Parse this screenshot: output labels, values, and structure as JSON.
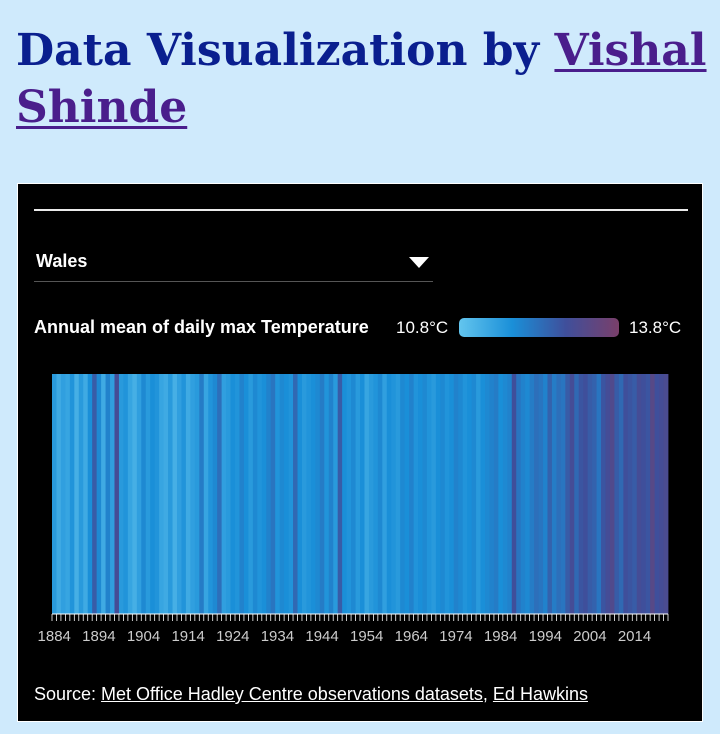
{
  "page": {
    "title_prefix": "Data Visualization by ",
    "author": "Vishal Shinde"
  },
  "dropdown": {
    "selected": "Wales"
  },
  "legend": {
    "label": "Annual mean of daily max Temperature",
    "min_label": "10.8°C",
    "max_label": "13.8°C",
    "colors": [
      "#63c5ee",
      "#1a8fd8",
      "#3f4f9b",
      "#7a3f6a"
    ]
  },
  "source": {
    "prefix": "Source: ",
    "link1": "Met Office Hadley Centre observations datasets",
    "separator": ", ",
    "link2": "Ed Hawkins"
  },
  "chart_data": {
    "type": "heatmap",
    "title": "Annual mean of daily max Temperature",
    "region": "Wales",
    "unit": "°C",
    "x_start": 1884,
    "x_end": 2021,
    "ticks": [
      "1884",
      "1894",
      "1904",
      "1914",
      "1924",
      "1934",
      "1944",
      "1954",
      "1964",
      "1974",
      "1984",
      "1994",
      "2004",
      "2014"
    ],
    "vmin": 10.8,
    "vmax": 13.8,
    "values": [
      11.6,
      11.3,
      11.5,
      11.4,
      11.7,
      11.2,
      11.6,
      11.3,
      11.8,
      12.6,
      11.9,
      11.3,
      12.0,
      11.5,
      12.9,
      11.6,
      11.7,
      11.4,
      11.2,
      11.5,
      11.9,
      11.6,
      11.8,
      11.7,
      11.4,
      11.3,
      11.6,
      11.2,
      11.5,
      11.7,
      11.3,
      11.5,
      11.6,
      12.1,
      11.4,
      11.7,
      11.9,
      12.3,
      11.5,
      11.6,
      11.8,
      11.7,
      12.0,
      11.8,
      11.6,
      11.9,
      11.7,
      11.8,
      12.0,
      12.2,
      11.7,
      11.9,
      11.8,
      11.7,
      12.4,
      11.8,
      11.6,
      11.7,
      11.8,
      11.9,
      12.1,
      11.7,
      12.0,
      11.6,
      12.6,
      11.8,
      11.7,
      11.9,
      11.6,
      11.8,
      11.4,
      11.6,
      11.7,
      11.9,
      11.5,
      11.8,
      11.7,
      11.6,
      11.9,
      11.8,
      12.0,
      11.7,
      11.8,
      11.9,
      11.7,
      11.6,
      11.8,
      11.9,
      11.7,
      11.8,
      12.0,
      11.9,
      11.7,
      11.8,
      11.9,
      11.6,
      11.8,
      11.9,
      12.0,
      12.1,
      11.8,
      11.9,
      12.0,
      12.8,
      12.2,
      12.0,
      11.9,
      12.1,
      12.3,
      12.2,
      12.0,
      12.5,
      12.1,
      12.3,
      12.2,
      12.6,
      12.9,
      12.4,
      12.7,
      12.8,
      12.6,
      12.5,
      12.2,
      12.7,
      12.9,
      13.1,
      12.6,
      12.4,
      12.8,
      12.7,
      12.6,
      12.9,
      12.8,
      12.7,
      13.2,
      12.8,
      12.9,
      13.0
    ]
  }
}
